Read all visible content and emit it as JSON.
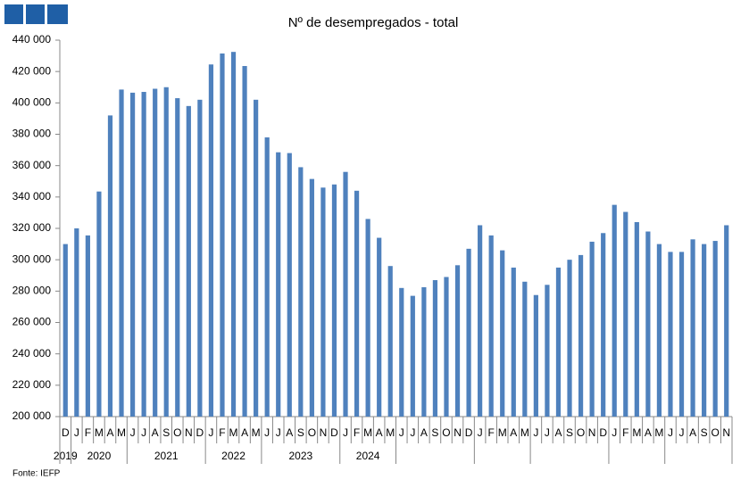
{
  "chart_data": {
    "type": "bar",
    "title": "Nº de desempregados - total",
    "source": "Fonte:  IEFP",
    "categories": [
      "D",
      "J",
      "F",
      "M",
      "A",
      "M",
      "J",
      "J",
      "A",
      "S",
      "O",
      "N",
      "D",
      "J",
      "F",
      "M",
      "A",
      "M",
      "J",
      "J",
      "A",
      "S",
      "O",
      "N",
      "D",
      "J",
      "F",
      "M",
      "A",
      "M",
      "J",
      "J",
      "A",
      "S",
      "O",
      "N",
      "D",
      "J",
      "F",
      "M",
      "A",
      "M",
      "J",
      "J",
      "A",
      "S",
      "O",
      "N",
      "D",
      "J",
      "F",
      "M",
      "A",
      "M",
      "J",
      "J",
      "A",
      "S",
      "O",
      "N"
    ],
    "year_labels": [
      "2019",
      "2020",
      "2021",
      "2022",
      "2023",
      "2024"
    ],
    "values": [
      310000,
      320000,
      315500,
      343500,
      392000,
      408500,
      406500,
      407000,
      409000,
      410000,
      403000,
      398000,
      402000,
      424500,
      431500,
      432500,
      423500,
      402000,
      378000,
      368500,
      368000,
      359000,
      351500,
      346000,
      348000,
      356000,
      344000,
      326000,
      314000,
      296000,
      282000,
      277000,
      282500,
      287000,
      289000,
      296500,
      307000,
      322000,
      315500,
      306000,
      295000,
      286000,
      277500,
      284000,
      295000,
      300000,
      303000,
      311500,
      317000,
      335000,
      330500,
      324000,
      318000,
      310000,
      305000,
      305000,
      313000,
      310000,
      312000,
      322000
    ],
    "color": "#4f81bd",
    "ylim": [
      200000,
      440000
    ],
    "yticks": [
      {
        "value": 200000,
        "label": "200 000"
      },
      {
        "value": 220000,
        "label": "220 000"
      },
      {
        "value": 240000,
        "label": "240 000"
      },
      {
        "value": 260000,
        "label": "260 000"
      },
      {
        "value": 280000,
        "label": "280 000"
      },
      {
        "value": 300000,
        "label": "300 000"
      },
      {
        "value": 320000,
        "label": "320 000"
      },
      {
        "value": 340000,
        "label": "340 000"
      },
      {
        "value": 360000,
        "label": "360 000"
      },
      {
        "value": 380000,
        "label": "380 000"
      },
      {
        "value": 400000,
        "label": "400 000"
      },
      {
        "value": 420000,
        "label": "420 000"
      },
      {
        "value": 440000,
        "label": "440 000"
      }
    ],
    "grid": false
  }
}
